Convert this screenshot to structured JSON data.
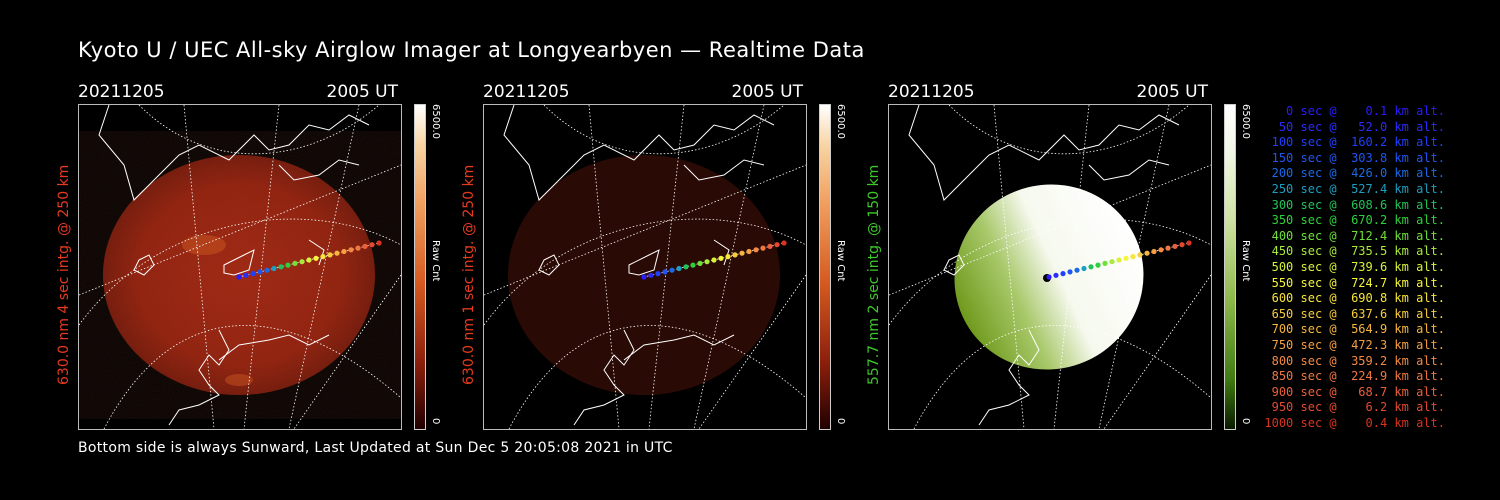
{
  "title": "Kyoto U / UEC All-sky Airglow Imager at Longyearbyen — Realtime Data",
  "footer": "Bottom side is always Sunward, Last Updated at Sun Dec  5 20:05:08 2021 in UTC",
  "panels": [
    {
      "date": "20211205",
      "time": "2005 UT",
      "ylabel": "630.0 nm 4 sec intg. @ 250 km",
      "label_color": "#e63a1e",
      "cb_max": "6500.0",
      "cb_min": "0",
      "cb_label": "Raw Cnt"
    },
    {
      "date": "20211205",
      "time": "2005 UT",
      "ylabel": "630.0 nm 1 sec intg. @ 250 km",
      "label_color": "#e63a1e",
      "cb_max": "6500.0",
      "cb_min": "0",
      "cb_label": "Raw Cnt"
    },
    {
      "date": "20211205",
      "time": "2005 UT",
      "ylabel": "557.7 nm 2 sec intg. @ 150 km",
      "label_color": "#3ec92a",
      "cb_max": "6500.0",
      "cb_min": "0",
      "cb_label": "Raw Cnt"
    }
  ],
  "legend": [
    {
      "text": "   0 sec @    0.1 km alt.",
      "color": "#2a1cff"
    },
    {
      "text": "  50 sec @   52.0 km alt.",
      "color": "#2a2cff"
    },
    {
      "text": " 100 sec @  160.2 km alt.",
      "color": "#2040ff"
    },
    {
      "text": " 150 sec @  303.8 km alt.",
      "color": "#1f55f5"
    },
    {
      "text": " 200 sec @  426.0 km alt.",
      "color": "#1a6ae8"
    },
    {
      "text": " 250 sec @  527.4 km alt.",
      "color": "#1d9ec3"
    },
    {
      "text": " 300 sec @  608.6 km alt.",
      "color": "#22c25a"
    },
    {
      "text": " 350 sec @  670.2 km alt.",
      "color": "#2fd13a"
    },
    {
      "text": " 400 sec @  712.4 km alt.",
      "color": "#6ee03a"
    },
    {
      "text": " 450 sec @  735.5 km alt.",
      "color": "#a9ea3c"
    },
    {
      "text": " 500 sec @  739.6 km alt.",
      "color": "#d8f23a"
    },
    {
      "text": " 550 sec @  724.7 km alt.",
      "color": "#f5f53a"
    },
    {
      "text": " 600 sec @  690.8 km alt.",
      "color": "#f8e43a"
    },
    {
      "text": " 650 sec @  637.6 km alt.",
      "color": "#f7cd3d"
    },
    {
      "text": " 700 sec @  564.9 km alt.",
      "color": "#f6b540"
    },
    {
      "text": " 750 sec @  472.3 km alt.",
      "color": "#f59f42"
    },
    {
      "text": " 800 sec @  359.2 km alt.",
      "color": "#f28a44"
    },
    {
      "text": " 850 sec @  224.9 km alt.",
      "color": "#ef7842"
    },
    {
      "text": " 900 sec @   68.7 km alt.",
      "color": "#ea603c"
    },
    {
      "text": " 950 sec @    6.2 km alt.",
      "color": "#e34a30"
    },
    {
      "text": "1000 sec @    0.4 km alt.",
      "color": "#d9341f"
    }
  ]
}
